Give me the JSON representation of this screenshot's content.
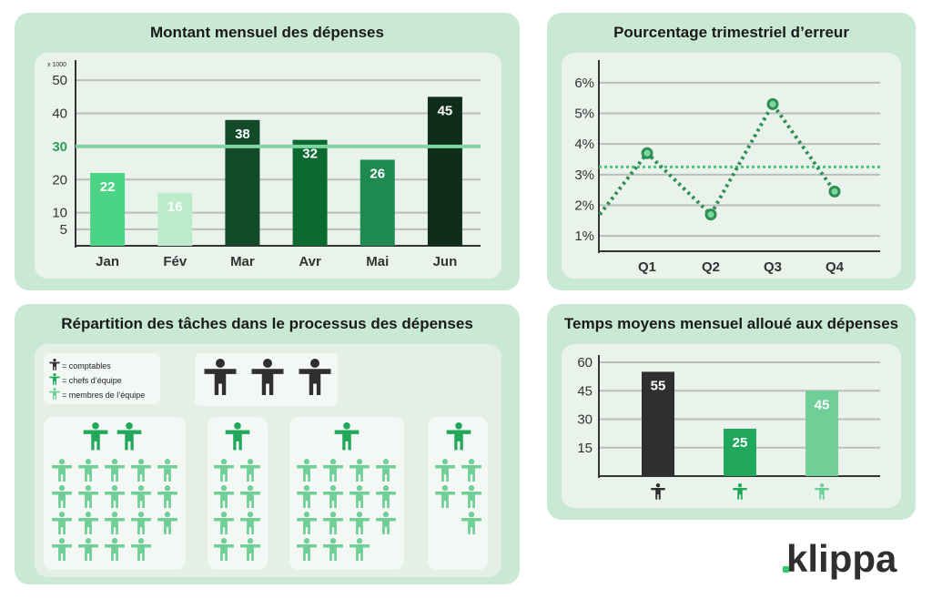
{
  "colors": {
    "panel_bg": "#c9e9d4",
    "inner_bg": "#e9f3ec",
    "dark": "#2f2f2f",
    "mid_green": "#21a85a",
    "light_green": "#6fcf97",
    "logo_green": "#2ecc71"
  },
  "icons": {
    "comptables": "person-icon-dark",
    "chefs": "person-icon-green",
    "membres": "person-icon-light-green"
  },
  "panels": {
    "monthly": {
      "title": "Montant mensuel des dépenses"
    },
    "quarterly": {
      "title": "Pourcentage trimestriel d’erreur"
    },
    "tasks": {
      "title": "Répartition des tâches dans le processus des dépenses"
    },
    "time": {
      "title": "Temps moyens mensuel alloué aux dépenses"
    }
  },
  "legend": {
    "comptables": "= comptables",
    "chefs": "= chefs d’équipe",
    "membres": "= membres de l’équipe"
  },
  "tasks_groups": {
    "comptables": 3,
    "groups": [
      {
        "chefs": 2,
        "membres": 19
      },
      {
        "chefs": 1,
        "membres": 8
      },
      {
        "chefs": 1,
        "membres": 15
      },
      {
        "chefs": 1,
        "membres": 5
      }
    ]
  },
  "logo": {
    "text": "klippa"
  },
  "chart_data": [
    {
      "type": "bar",
      "title": "Montant mensuel des dépenses",
      "unit_label": "x 1000",
      "categories": [
        "Jan",
        "Fév",
        "Mar",
        "Avr",
        "Mai",
        "Jun"
      ],
      "values": [
        22,
        16,
        38,
        32,
        26,
        45
      ],
      "colors": [
        "#4cd486",
        "#bdeccc",
        "#124a2a",
        "#0a6a30",
        "#1f8a50",
        "#0e2d1a"
      ],
      "yticks": [
        5,
        10,
        20,
        30,
        40,
        50
      ],
      "reference_line": 30,
      "ylim": [
        0,
        55
      ],
      "grid": true
    },
    {
      "type": "line",
      "title": "Pourcentage trimestriel d’erreur",
      "categories": [
        "Q1",
        "Q2",
        "Q3",
        "Q4"
      ],
      "values": [
        3.7,
        1.7,
        5.3,
        2.45
      ],
      "line_start": 1.7,
      "average_line": 3.25,
      "yticks": [
        "1%",
        "2%",
        "3%",
        "4%",
        "5%",
        "6%"
      ],
      "ylim": [
        0.5,
        6.5
      ],
      "grid": true
    },
    {
      "type": "bar",
      "title": "Temps moyens mensuel alloué aux dépenses",
      "categories": [
        "comptables",
        "chefs d’équipe",
        "membres de l’équipe"
      ],
      "values": [
        55,
        25,
        45
      ],
      "colors": [
        "#2f2f2f",
        "#21a85a",
        "#6fcf97"
      ],
      "yticks": [
        15,
        30,
        45,
        60
      ],
      "ylim": [
        0,
        65
      ],
      "grid": true
    }
  ]
}
